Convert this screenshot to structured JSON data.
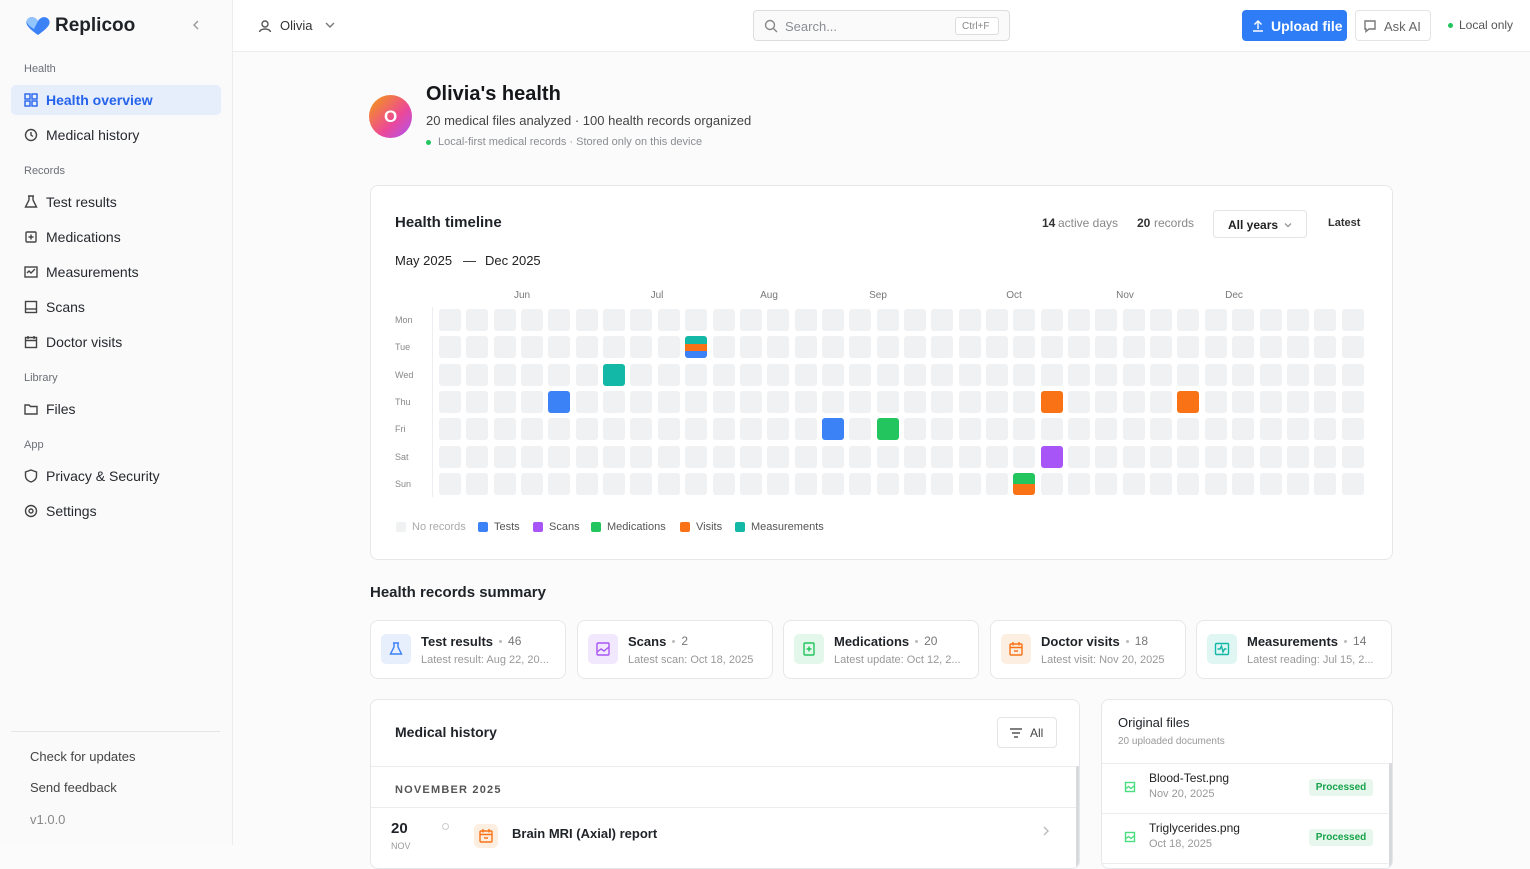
{
  "sidebar": {
    "brand": "Replicoo",
    "sections": [
      {
        "heading": "Health",
        "items": [
          "Health overview",
          "Medical history"
        ]
      },
      {
        "heading": "Records",
        "items": [
          "Test results",
          "Medications",
          "Measurements",
          "Scans",
          "Doctor visits"
        ]
      },
      {
        "heading": "Library",
        "items": [
          "Files"
        ]
      },
      {
        "heading": "App",
        "items": [
          "Privacy & Security",
          "Settings"
        ]
      }
    ],
    "footer": [
      "Check for updates",
      "Send feedback",
      "v1.0.0"
    ]
  },
  "topbar": {
    "user": "Olivia",
    "search_placeholder": "Search...",
    "search_shortcut": "Ctrl+F",
    "upload": "Upload file",
    "ask_ai": "Ask AI",
    "storage": "Local only"
  },
  "profile": {
    "initial": "O",
    "title": "Olivia's health",
    "subtitle": "20 medical files analyzed · 100 health records organized",
    "note": "Local-first medical records · Stored only on this device"
  },
  "timeline": {
    "title": "Health timeline",
    "active_days": 14,
    "active_days_label": "active days",
    "records": 20,
    "records_label": "records",
    "filter": "All years",
    "sort": "Latest",
    "range_start": "May 2025",
    "range_sep": "—",
    "range_end": "Dec 2025",
    "months": [
      "Jun",
      "Jul",
      "Aug",
      "Sep",
      "Oct",
      "Nov",
      "Dec"
    ],
    "days": [
      "Mon",
      "Tue",
      "Wed",
      "Thu",
      "Fri",
      "Sat",
      "Sun"
    ],
    "legend": [
      {
        "label": "No records",
        "color": "#f0f1f3"
      },
      {
        "label": "Tests",
        "color": "#3b82f6"
      },
      {
        "label": "Scans",
        "color": "#a855f7"
      },
      {
        "label": "Medications",
        "color": "#22c55e"
      },
      {
        "label": "Visits",
        "color": "#f97316"
      },
      {
        "label": "Measurements",
        "color": "#14b8a6"
      }
    ]
  },
  "summary": {
    "title": "Health records summary",
    "cards": [
      {
        "title": "Test results",
        "count": 46,
        "detail": "Latest result: Aug 22, 20..."
      },
      {
        "title": "Scans",
        "count": 2,
        "detail": "Latest scan: Oct 18, 2025"
      },
      {
        "title": "Medications",
        "count": 20,
        "detail": "Latest update: Oct 12, 2..."
      },
      {
        "title": "Doctor visits",
        "count": 18,
        "detail": "Latest visit: Nov 20, 2025"
      },
      {
        "title": "Measurements",
        "count": 14,
        "detail": "Latest reading: Jul 15, 2..."
      }
    ]
  },
  "history": {
    "title": "Medical history",
    "filter": "All",
    "group": "NOVEMBER 2025",
    "entries": [
      {
        "day": 20,
        "month": "NOV",
        "title": "Brain MRI (Axial) report"
      }
    ]
  },
  "files": {
    "title": "Original files",
    "subtitle": "20 uploaded documents",
    "items": [
      {
        "name": "Blood-Test.png",
        "date": "Nov 20, 2025",
        "status": "Processed"
      },
      {
        "name": "Triglycerides.png",
        "date": "Oct 18, 2025",
        "status": "Processed"
      }
    ]
  }
}
